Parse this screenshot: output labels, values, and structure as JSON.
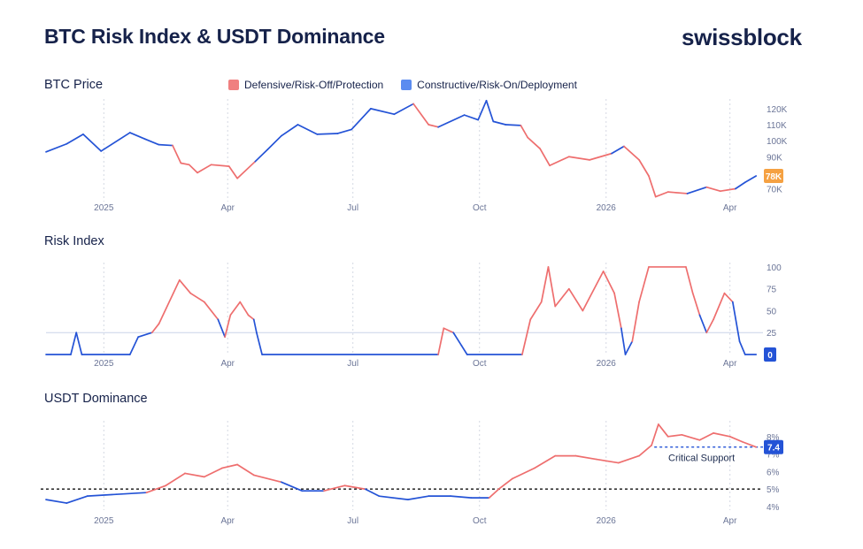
{
  "header": {
    "title": "BTC Risk Index & USDT Dominance",
    "logo": "swissblock"
  },
  "legend": {
    "defensive": {
      "label": "Defensive/Risk-Off/Protection",
      "color": "#f08080"
    },
    "constructive": {
      "label": "Constructive/Risk-On/Deployment",
      "color": "#5b8cf0"
    }
  },
  "colors": {
    "defensive": "#ee6e6e",
    "constructive": "#2453d6",
    "badge_price": "#f5a142",
    "badge_blue": "#2453d6",
    "axis_text": "#6b7597"
  },
  "chart_data": [
    {
      "type": "line",
      "title": "BTC Price",
      "x_type": "date",
      "xlim": [
        "2024-11-20",
        "2026-04-25"
      ],
      "xticks": [
        "2025",
        "Apr",
        "Jul",
        "Oct",
        "2026",
        "Apr"
      ],
      "ylim": [
        62000,
        126000
      ],
      "yticks": [
        "120K",
        "110K",
        "100K",
        "90K",
        "80K",
        "70K"
      ],
      "last_value_label": "78K",
      "series": [
        {
          "regime_colored_by": "Risk Index",
          "points": [
            [
              "2024-11-20",
              93000,
              "c"
            ],
            [
              "2024-12-05",
              98000,
              "c"
            ],
            [
              "2024-12-17",
              104000,
              "c"
            ],
            [
              "2024-12-30",
              93500,
              "c"
            ],
            [
              "2025-01-20",
              105000,
              "c"
            ],
            [
              "2025-01-31",
              101000,
              "c"
            ],
            [
              "2025-02-10",
              97500,
              "c"
            ],
            [
              "2025-02-20",
              97000,
              "c"
            ],
            [
              "2025-02-26",
              86000,
              "d"
            ],
            [
              "2025-03-04",
              85000,
              "d"
            ],
            [
              "2025-03-10",
              80000,
              "d"
            ],
            [
              "2025-03-20",
              85000,
              "d"
            ],
            [
              "2025-04-02",
              84000,
              "d"
            ],
            [
              "2025-04-08",
              76500,
              "d"
            ],
            [
              "2025-04-21",
              87000,
              "d"
            ],
            [
              "2025-04-30",
              94500,
              "c"
            ],
            [
              "2025-05-10",
              103000,
              "c"
            ],
            [
              "2025-05-22",
              110000,
              "c"
            ],
            [
              "2025-06-05",
              104000,
              "c"
            ],
            [
              "2025-06-20",
              104500,
              "c"
            ],
            [
              "2025-06-30",
              107000,
              "c"
            ],
            [
              "2025-07-14",
              120000,
              "c"
            ],
            [
              "2025-07-31",
              116500,
              "c"
            ],
            [
              "2025-08-14",
              123000,
              "c"
            ],
            [
              "2025-08-25",
              110000,
              "d"
            ],
            [
              "2025-09-01",
              108500,
              "d"
            ],
            [
              "2025-09-20",
              116000,
              "c"
            ],
            [
              "2025-09-30",
              113000,
              "c"
            ],
            [
              "2025-10-06",
              125000,
              "c"
            ],
            [
              "2025-10-11",
              112000,
              "c"
            ],
            [
              "2025-10-20",
              110000,
              "c"
            ],
            [
              "2025-10-31",
              109500,
              "c"
            ],
            [
              "2025-11-05",
              102000,
              "d"
            ],
            [
              "2025-11-14",
              95000,
              "d"
            ],
            [
              "2025-11-21",
              84500,
              "d"
            ],
            [
              "2025-12-05",
              90000,
              "d"
            ],
            [
              "2025-12-20",
              88000,
              "d"
            ],
            [
              "2026-01-05",
              92000,
              "d"
            ],
            [
              "2026-01-14",
              96500,
              "c"
            ],
            [
              "2026-01-25",
              88000,
              "d"
            ],
            [
              "2026-02-01",
              78000,
              "d"
            ],
            [
              "2026-02-06",
              65000,
              "d"
            ],
            [
              "2026-02-15",
              68000,
              "d"
            ],
            [
              "2026-03-01",
              67000,
              "d"
            ],
            [
              "2026-03-15",
              71000,
              "c"
            ],
            [
              "2026-03-25",
              68500,
              "d"
            ],
            [
              "2026-04-05",
              70000,
              "d"
            ],
            [
              "2026-04-12",
              74000,
              "c"
            ],
            [
              "2026-04-20",
              78000,
              "c"
            ]
          ]
        }
      ]
    },
    {
      "type": "line",
      "title": "Risk Index",
      "x_type": "date",
      "xlim": [
        "2024-11-20",
        "2026-04-25"
      ],
      "xticks": [
        "2025",
        "Apr",
        "Jul",
        "Oct",
        "2026",
        "Apr"
      ],
      "ylim": [
        0,
        105
      ],
      "yticks": [
        "100",
        "75",
        "50",
        "25"
      ],
      "reference_line": 25,
      "last_value_label": "0",
      "series": [
        {
          "points": [
            [
              "2024-11-20",
              0,
              "c"
            ],
            [
              "2024-12-08",
              0,
              "c"
            ],
            [
              "2024-12-12",
              25,
              "c"
            ],
            [
              "2024-12-16",
              0,
              "c"
            ],
            [
              "2025-01-20",
              0,
              "c"
            ],
            [
              "2025-01-26",
              20,
              "c"
            ],
            [
              "2025-02-05",
              25,
              "c"
            ],
            [
              "2025-02-10",
              35,
              "d"
            ],
            [
              "2025-02-25",
              85,
              "d"
            ],
            [
              "2025-03-05",
              70,
              "d"
            ],
            [
              "2025-03-15",
              60,
              "d"
            ],
            [
              "2025-03-25",
              40,
              "d"
            ],
            [
              "2025-03-30",
              20,
              "c"
            ],
            [
              "2025-04-03",
              45,
              "d"
            ],
            [
              "2025-04-10",
              60,
              "d"
            ],
            [
              "2025-04-16",
              45,
              "d"
            ],
            [
              "2025-04-20",
              40,
              "d"
            ],
            [
              "2025-04-22",
              25,
              "c"
            ],
            [
              "2025-04-26",
              0,
              "c"
            ],
            [
              "2025-09-01",
              0,
              "c"
            ],
            [
              "2025-09-05",
              30,
              "d"
            ],
            [
              "2025-09-12",
              25,
              "d"
            ],
            [
              "2025-09-18",
              10,
              "c"
            ],
            [
              "2025-09-22",
              0,
              "c"
            ],
            [
              "2025-11-01",
              0,
              "c"
            ],
            [
              "2025-11-07",
              40,
              "d"
            ],
            [
              "2025-11-15",
              60,
              "d"
            ],
            [
              "2025-11-20",
              100,
              "d"
            ],
            [
              "2025-11-25",
              55,
              "d"
            ],
            [
              "2025-12-05",
              75,
              "d"
            ],
            [
              "2025-12-15",
              50,
              "d"
            ],
            [
              "2025-12-30",
              95,
              "d"
            ],
            [
              "2026-01-07",
              70,
              "d"
            ],
            [
              "2026-01-12",
              30,
              "d"
            ],
            [
              "2026-01-15",
              0,
              "c"
            ],
            [
              "2026-01-20",
              15,
              "c"
            ],
            [
              "2026-01-25",
              60,
              "d"
            ],
            [
              "2026-02-01",
              100,
              "d"
            ],
            [
              "2026-02-28",
              100,
              "d"
            ],
            [
              "2026-03-05",
              70,
              "d"
            ],
            [
              "2026-03-10",
              45,
              "d"
            ],
            [
              "2026-03-15",
              25,
              "c"
            ],
            [
              "2026-03-20",
              40,
              "d"
            ],
            [
              "2026-03-28",
              70,
              "d"
            ],
            [
              "2026-04-03",
              60,
              "d"
            ],
            [
              "2026-04-08",
              15,
              "c"
            ],
            [
              "2026-04-12",
              0,
              "c"
            ],
            [
              "2026-04-20",
              0,
              "c"
            ]
          ]
        }
      ]
    },
    {
      "type": "line",
      "title": "USDT Dominance",
      "x_type": "date",
      "xlim": [
        "2024-11-20",
        "2026-04-25"
      ],
      "xticks": [
        "2025",
        "Apr",
        "Jul",
        "Oct",
        "2026",
        "Apr"
      ],
      "ylim": [
        3.8,
        8.9
      ],
      "yticks": [
        "8%",
        "7%",
        "6%",
        "5%",
        "4%"
      ],
      "reference_line": 5,
      "critical_support": 7.4,
      "critical_support_label": "Critical Support",
      "last_value_label": "7.4",
      "series": [
        {
          "points": [
            [
              "2024-11-20",
              4.4,
              "c"
            ],
            [
              "2024-12-05",
              4.2,
              "c"
            ],
            [
              "2024-12-20",
              4.6,
              "c"
            ],
            [
              "2025-01-10",
              4.7,
              "c"
            ],
            [
              "2025-02-01",
              4.8,
              "c"
            ],
            [
              "2025-02-15",
              5.2,
              "d"
            ],
            [
              "2025-03-01",
              5.9,
              "d"
            ],
            [
              "2025-03-15",
              5.7,
              "d"
            ],
            [
              "2025-03-28",
              6.2,
              "d"
            ],
            [
              "2025-04-08",
              6.4,
              "d"
            ],
            [
              "2025-04-20",
              5.8,
              "d"
            ],
            [
              "2025-05-10",
              5.4,
              "d"
            ],
            [
              "2025-05-25",
              4.9,
              "c"
            ],
            [
              "2025-06-10",
              4.9,
              "c"
            ],
            [
              "2025-06-25",
              5.2,
              "d"
            ],
            [
              "2025-07-10",
              5.0,
              "d"
            ],
            [
              "2025-07-20",
              4.6,
              "c"
            ],
            [
              "2025-08-10",
              4.4,
              "c"
            ],
            [
              "2025-08-25",
              4.6,
              "c"
            ],
            [
              "2025-09-10",
              4.6,
              "c"
            ],
            [
              "2025-09-25",
              4.5,
              "c"
            ],
            [
              "2025-10-08",
              4.5,
              "c"
            ],
            [
              "2025-10-15",
              5.0,
              "d"
            ],
            [
              "2025-10-25",
              5.6,
              "d"
            ],
            [
              "2025-11-10",
              6.2,
              "d"
            ],
            [
              "2025-11-25",
              6.9,
              "d"
            ],
            [
              "2025-12-10",
              6.9,
              "d"
            ],
            [
              "2025-12-25",
              6.7,
              "d"
            ],
            [
              "2026-01-10",
              6.5,
              "d"
            ],
            [
              "2026-01-25",
              6.9,
              "d"
            ],
            [
              "2026-02-03",
              7.5,
              "d"
            ],
            [
              "2026-02-08",
              8.7,
              "d"
            ],
            [
              "2026-02-15",
              8.0,
              "d"
            ],
            [
              "2026-02-25",
              8.1,
              "d"
            ],
            [
              "2026-03-10",
              7.8,
              "d"
            ],
            [
              "2026-03-20",
              8.2,
              "d"
            ],
            [
              "2026-04-01",
              8.0,
              "d"
            ],
            [
              "2026-04-10",
              7.7,
              "d"
            ],
            [
              "2026-04-20",
              7.4,
              "d"
            ]
          ]
        }
      ]
    }
  ]
}
